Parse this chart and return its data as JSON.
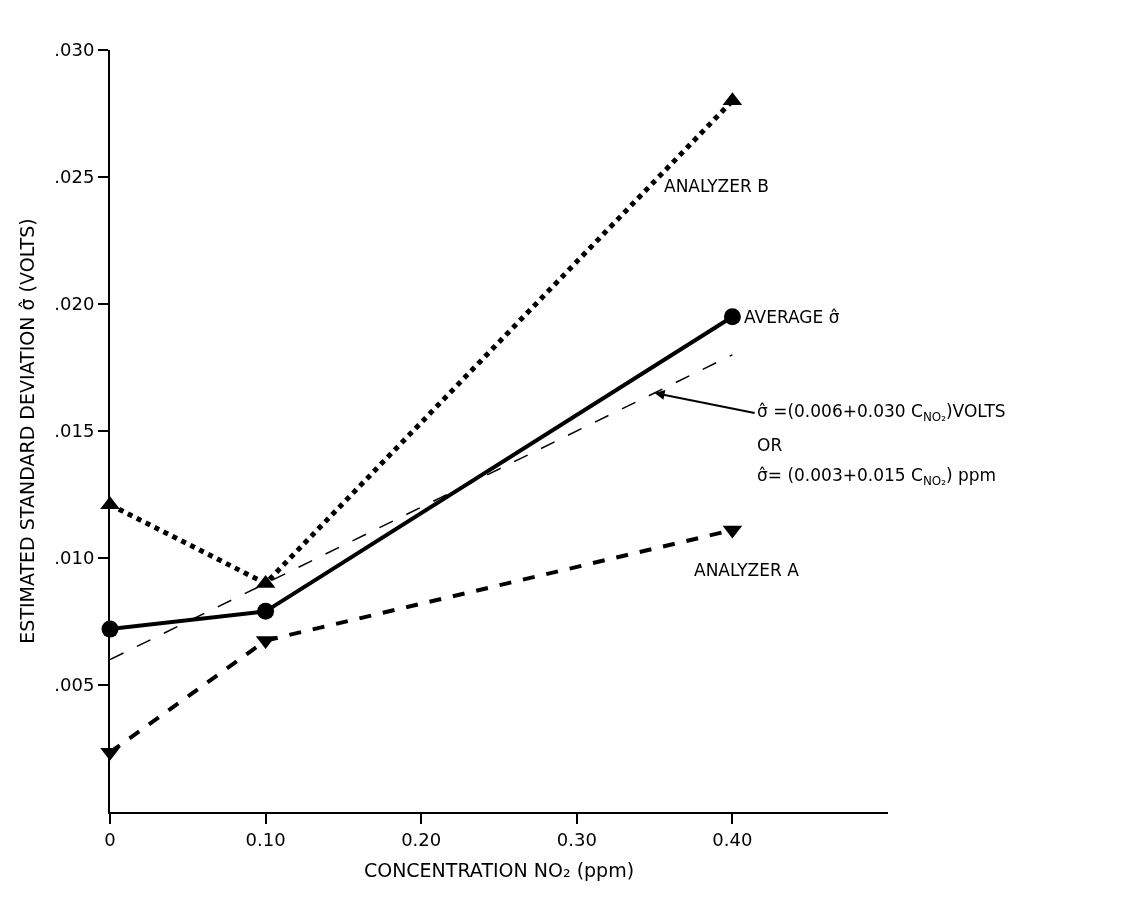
{
  "chart_data": {
    "type": "line",
    "xlabel": "CONCENTRATION NO₂ (ppm)",
    "ylabel": "ESTIMATED STANDARD DEVIATION σ̂ (VOLTS)",
    "x": [
      0,
      0.1,
      0.4
    ],
    "series": [
      {
        "name": "ANALYZER B",
        "color": "#000000",
        "values": [
          0.0121,
          0.009,
          0.028
        ],
        "marker": "triangle",
        "line_style": "dotted"
      },
      {
        "name": "AVERAGE σ̂",
        "color": "#000000",
        "values": [
          0.0072,
          0.0079,
          0.0195
        ],
        "marker": "circle",
        "line_style": "solid"
      },
      {
        "name": "ANALYZER A",
        "color": "#000000",
        "values": [
          0.00235,
          0.00675,
          0.0111
        ],
        "marker": "triangle-down",
        "line_style": "dashed"
      },
      {
        "type": "line",
        "color": "#000000",
        "x": [
          0,
          0.4
        ],
        "values": [
          0.006,
          0.018
        ],
        "marker": "none",
        "line_style": "longdash"
      }
    ],
    "annotations": [
      {
        "text": "σ̂ =(0.006+0.030 C$_{NO₂}$)VOLTS",
        "x": 0.35,
        "y": 0.0165
      },
      "OR",
      "σ̂= (0.003+0.015 C$_{NO₂}$) ppm"
    ],
    "xlim": [
      0,
      0.5
    ],
    "ylim": [
      0,
      0.03
    ],
    "xticks": [
      0,
      {
        "value": 0.1,
        "label": "0.10"
      },
      {
        "value": 0.2,
        "label": "0.20"
      },
      {
        "value": 0.3,
        "label": "0.30"
      },
      {
        "value": 0.4,
        "label": "0.40"
      }
    ],
    "yticks": [
      {
        "value": 0.005,
        "label": ".005"
      },
      {
        "value": 0.01,
        "label": ".010"
      },
      {
        "value": 0.015,
        "label": ".015"
      },
      {
        "value": 0.02,
        "label": ".020"
      },
      {
        "value": 0.025,
        "label": ".025"
      },
      {
        "value": 0.03,
        "label": ".030"
      }
    ]
  }
}
